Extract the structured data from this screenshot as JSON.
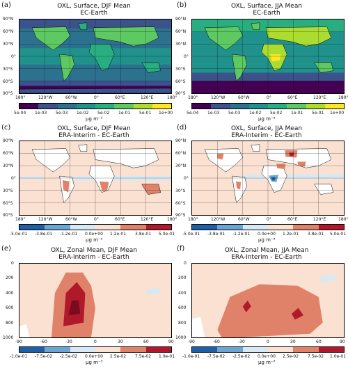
{
  "panels": [
    {
      "label": "(a)",
      "title1": "OXL, Surface, DJF Mean",
      "title2": "EC-Earth"
    },
    {
      "label": "(b)",
      "title1": "OXL, Surface, JJA Mean",
      "title2": "EC-Earth"
    },
    {
      "label": "(c)",
      "title1": "OXL, Surface, DJF Mean",
      "title2": "ERA-Interim - EC-Earth"
    },
    {
      "label": "(d)",
      "title1": "OXL, Surface, JJA Mean",
      "title2": "ERA-Interim - EC-Earth"
    },
    {
      "label": "(e)",
      "title1": "OXL, Zonal Mean, DJF Mean",
      "title2": "ERA-Interim - EC-Earth"
    },
    {
      "label": "(f)",
      "title1": "OXL, Zonal Mean, JJA Mean",
      "title2": "ERA-Interim - EC-Earth"
    }
  ],
  "map_axes": {
    "lat_ticks": [
      "90°N",
      "60°N",
      "30°N",
      "0°",
      "30°S",
      "60°S",
      "90°S"
    ],
    "lon_ticks": [
      "180°",
      "120°W",
      "60°W",
      "0°",
      "60°E",
      "120°E",
      "180°"
    ]
  },
  "zonal_axes": {
    "y_ticks": [
      "0",
      "200",
      "400",
      "600",
      "800",
      "1000"
    ],
    "x_ticks": [
      "-90",
      "-60",
      "-30",
      "0",
      "30",
      "60",
      "90"
    ]
  },
  "colorbars": {
    "abs": {
      "ticks": [
        "5e-04",
        "1e-03",
        "5e-03",
        "1e-02",
        "5e-02",
        "1e-01",
        "5e-01",
        "1e+00"
      ],
      "colors": [
        "#440154",
        "#3b528b",
        "#2c728e",
        "#21918c",
        "#28ae80",
        "#5ec962",
        "#addc30",
        "#fde725"
      ],
      "unit": "μg m⁻³"
    },
    "diff_surface": {
      "ticks": [
        "-5.0e-01",
        "-3.8e-01",
        "-1.2e-01",
        "0.0e+00",
        "1.2e-01",
        "3.8e-01",
        "5.0e-01"
      ],
      "colors": [
        "#1f5fa6",
        "#6aa6d1",
        "#d7e9f4",
        "#fbe1d2",
        "#e0826a",
        "#b0182b"
      ],
      "unit": "μg m⁻³"
    },
    "diff_zonal": {
      "ticks": [
        "-1.0e-01",
        "-7.5e-02",
        "-2.5e-02",
        "0.0e+00",
        "2.5e-02",
        "7.5e-02",
        "1.0e-01"
      ],
      "colors": [
        "#1f5fa6",
        "#6aa6d1",
        "#d7e9f4",
        "#fbe1d2",
        "#e0826a",
        "#b0182b"
      ],
      "unit": "μg m⁻³"
    }
  },
  "chart_data": [
    {
      "type": "heatmap",
      "panel": "(a)",
      "field": "OXL surface DJF mean, EC-Earth",
      "levels": [
        0.0005,
        0.001,
        0.005,
        0.01,
        0.05,
        0.1,
        0.5,
        1.0
      ],
      "description_values": {
        "southern_ocean_60S_90S": 0.001,
        "tropical_land": 0.1,
        "continents": 0.05,
        "oceans": 0.01
      }
    },
    {
      "type": "heatmap",
      "panel": "(b)",
      "field": "OXL surface JJA mean, EC-Earth",
      "levels": [
        0.0005,
        0.001,
        0.005,
        0.01,
        0.05,
        0.1,
        0.5,
        1.0
      ],
      "description_values": {
        "southern_ocean_60S_90S": 0.0005,
        "central_africa": 0.5,
        "continents": 0.1,
        "oceans": 0.01
      }
    },
    {
      "type": "heatmap",
      "panel": "(c)",
      "field": "OXL surface DJF difference",
      "levels": [
        -0.5,
        -0.38,
        -0.12,
        0,
        0.12,
        0.38,
        0.5
      ],
      "description_values": {
        "background": 0.05,
        "south_america": 0.38,
        "southern_africa": 0.38,
        "australia": 0.38,
        "equatorial_band": -0.12
      }
    },
    {
      "type": "heatmap",
      "panel": "(d)",
      "field": "OXL surface JJA difference",
      "levels": [
        -0.5,
        -0.38,
        -0.12,
        0,
        0.12,
        0.38,
        0.5
      ],
      "description_values": {
        "background": 0.05,
        "central_africa": -0.5,
        "europe": 0.38,
        "middle_east": 0.38,
        "india": 0.38,
        "south_america": 0.38
      }
    },
    {
      "type": "heatmap",
      "panel": "(e)",
      "field": "OXL zonal mean DJF difference",
      "x_range": [
        -90,
        90
      ],
      "y_range": [
        1000,
        0
      ],
      "levels": [
        -0.1,
        -0.075,
        -0.025,
        0,
        0.025,
        0.075,
        0.1
      ],
      "description_values": {
        "max_near_lat_-20_p_650": 0.1,
        "background": 0.01
      }
    },
    {
      "type": "heatmap",
      "panel": "(f)",
      "field": "OXL zonal mean JJA difference",
      "x_range": [
        -90,
        90
      ],
      "y_range": [
        1000,
        0
      ],
      "levels": [
        -0.1,
        -0.075,
        -0.025,
        0,
        0.025,
        0.075,
        0.1
      ],
      "description_values": {
        "max_near_lat_-20_p_600": 0.1,
        "max_near_lat_40_p_700": 0.1,
        "background": 0.01
      }
    }
  ]
}
